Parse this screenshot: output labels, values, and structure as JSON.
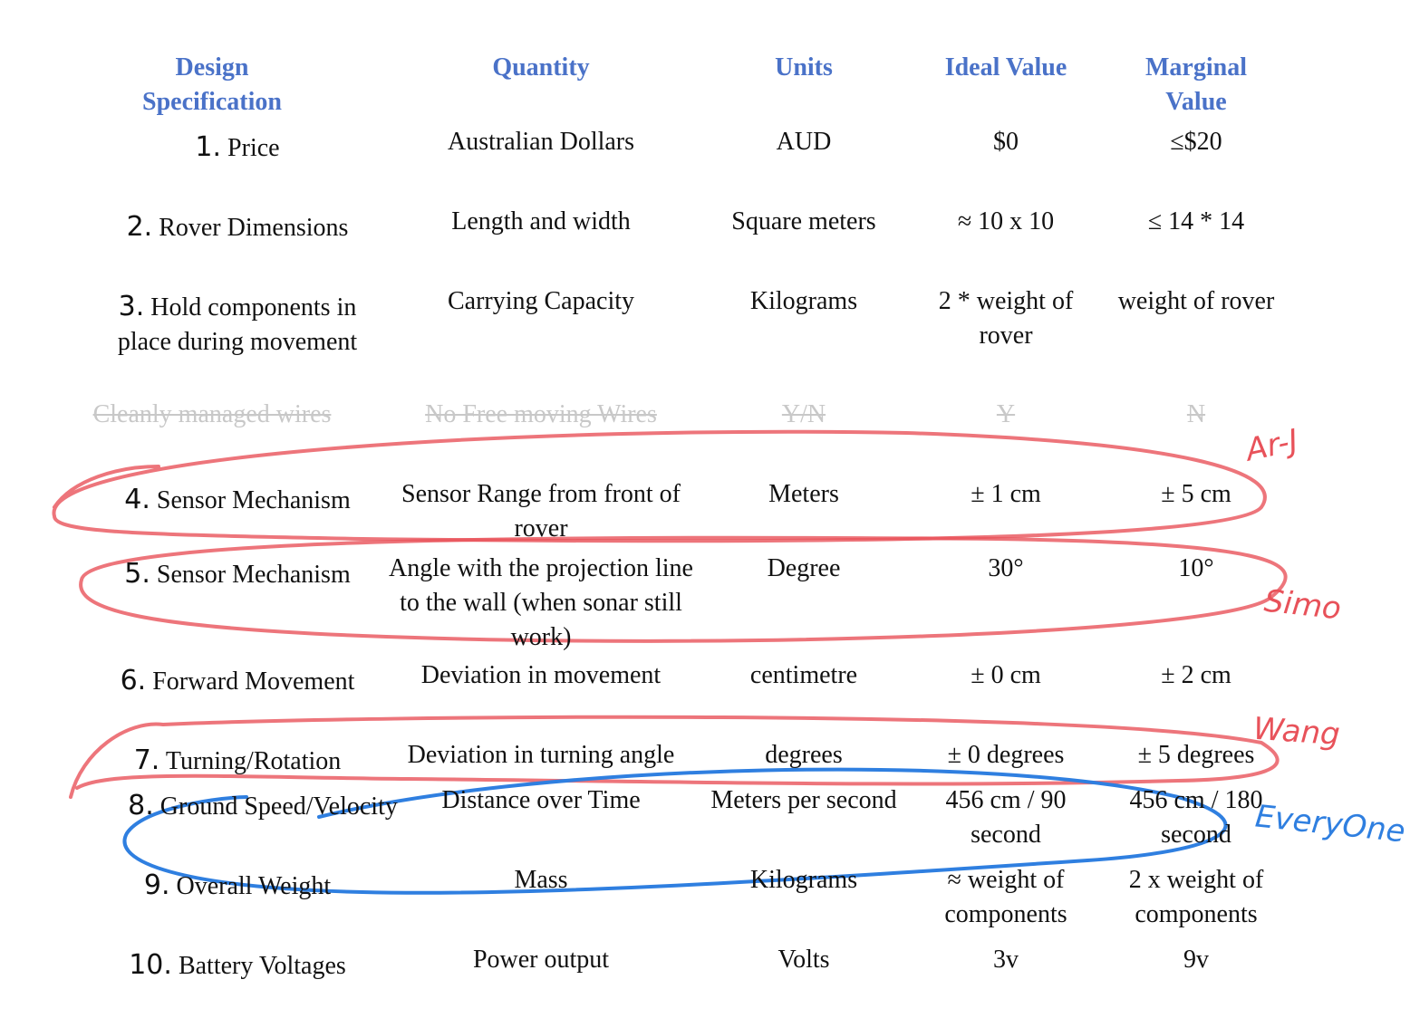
{
  "header": {
    "columns": [
      "Design Specification",
      "Quantity",
      "Units",
      "Ideal Value",
      "Marginal Value"
    ]
  },
  "rows": [
    {
      "number": "1.",
      "label": "Price",
      "quantity": "Australian Dollars",
      "units": "AUD",
      "ideal": "$0",
      "marginal": "≤$20"
    },
    {
      "number": "2.",
      "label": "Rover Dimensions",
      "quantity": "Length and width",
      "units": "Square meters",
      "ideal": "≈ 10 x 10",
      "marginal": "≤ 14 * 14"
    },
    {
      "number": "3.",
      "label": "Hold components in place during movement",
      "quantity": "Carrying Capacity",
      "units": "Kilograms",
      "ideal": "2 * weight of rover",
      "marginal": "weight of rover"
    },
    {
      "number": "4.",
      "label": "Sensor Mechanism",
      "quantity": "Sensor Range from front of rover",
      "units": "Meters",
      "ideal": "± 1 cm",
      "marginal": "± 5 cm"
    },
    {
      "number": "5.",
      "label": "Sensor Mechanism",
      "quantity": "Angle with the projection line to the wall (when sonar still work)",
      "units": "Degree",
      "ideal": "30°",
      "marginal": "10°"
    },
    {
      "number": "6.",
      "label": "Forward Movement",
      "quantity": "Deviation in movement",
      "units": "centimetre",
      "ideal": "± 0 cm",
      "marginal": "± 2 cm"
    },
    {
      "number": "7.",
      "label": "Turning/Rotation",
      "quantity": "Deviation in turning angle",
      "units": "degrees",
      "ideal": "± 0 degrees",
      "marginal": "± 5 degrees"
    },
    {
      "number": "8.",
      "label": "Ground Speed/Velocity",
      "quantity": "Distance over Time",
      "units": "Meters per second",
      "ideal": "456 cm / 90 second",
      "marginal": "456 cm / 180 second"
    },
    {
      "number": "9.",
      "label": "Overall Weight",
      "quantity": "Mass",
      "units": "Kilograms",
      "ideal": "≈ weight of components",
      "marginal": "2 x weight of components"
    },
    {
      "number": "10.",
      "label": "Battery Voltages",
      "quantity": "Power output",
      "units": "Volts",
      "ideal": "3v",
      "marginal": "9v"
    }
  ],
  "struck_row": {
    "label": "Cleanly managed wires",
    "quantity": "No Free moving Wires",
    "units": "Y/N",
    "ideal": "Y",
    "marginal": "N"
  },
  "annotations": [
    "Ar-J",
    "Simo",
    "Wang",
    "EveryOne"
  ]
}
